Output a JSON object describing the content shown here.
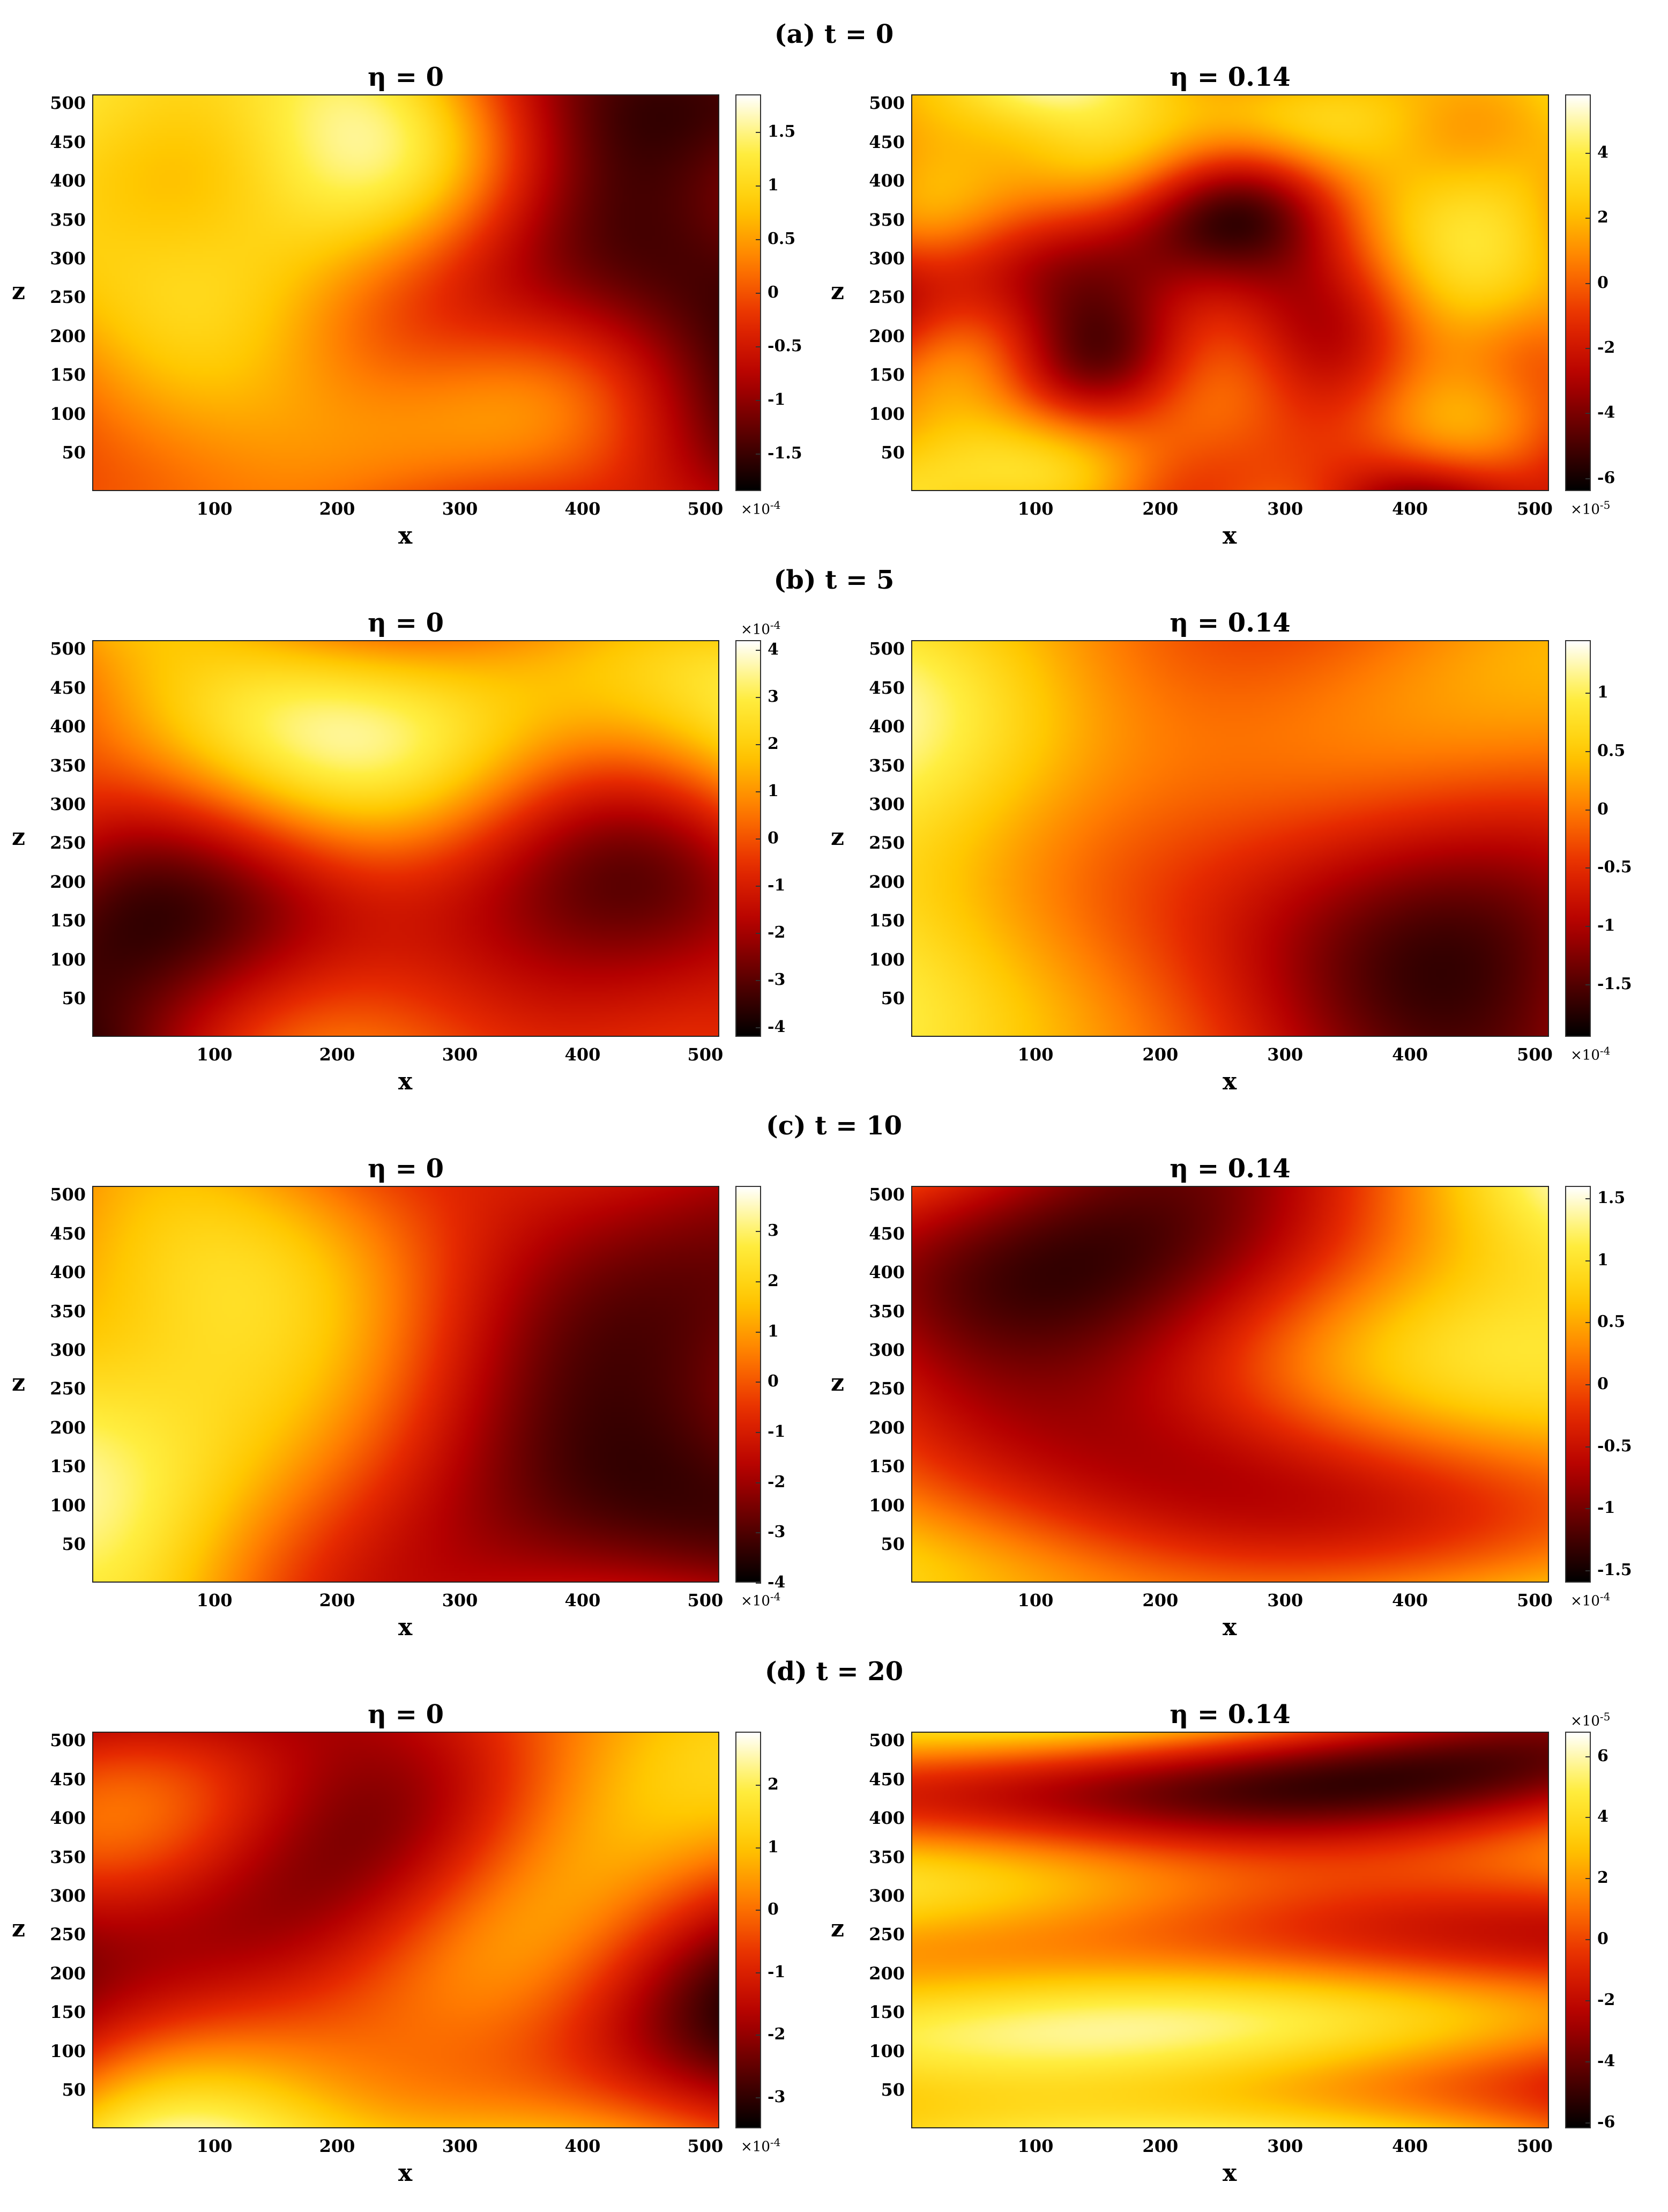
{
  "colormap": [
    "#000000",
    "#5a0000",
    "#b40000",
    "#e62a00",
    "#ff7a00",
    "#ffc800",
    "#ffee40",
    "#ffffff"
  ],
  "chart_data": [
    {
      "type": "heatmap",
      "row_title": "(a) t = 0",
      "title": "η = 0",
      "xlabel": "x",
      "ylabel": "z",
      "xlim": [
        1,
        512
      ],
      "ylim": [
        1,
        512
      ],
      "xticks": [
        100,
        200,
        300,
        400,
        500
      ],
      "yticks": [
        50,
        100,
        150,
        200,
        250,
        300,
        350,
        400,
        450,
        500
      ],
      "colorbar": {
        "min": -1.85,
        "max": 1.85,
        "ticks": [
          "1.5",
          "1",
          "0.5",
          "0",
          "-0.5",
          "-1",
          "-1.5"
        ],
        "tick_values": [
          1.5,
          1,
          0.5,
          0,
          -0.5,
          -1,
          -1.5
        ],
        "multiplier": "×10",
        "exponent": "-4",
        "multiplier_position": "bottom"
      },
      "seed": 11,
      "anisotropy": 1.0,
      "scale": 1.0
    },
    {
      "type": "heatmap",
      "row_title": "",
      "title": "η = 0.14",
      "xlabel": "x",
      "ylabel": "z",
      "xlim": [
        1,
        512
      ],
      "ylim": [
        1,
        512
      ],
      "xticks": [
        100,
        200,
        300,
        400,
        500
      ],
      "yticks": [
        50,
        100,
        150,
        200,
        250,
        300,
        350,
        400,
        450,
        500
      ],
      "colorbar": {
        "min": -6.4,
        "max": 5.8,
        "ticks": [
          "4",
          "2",
          "0",
          "-2",
          "-4",
          "-6"
        ],
        "tick_values": [
          4,
          2,
          0,
          -2,
          -4,
          -6
        ],
        "multiplier": "×10",
        "exponent": "-5",
        "multiplier_position": "bottom"
      },
      "seed": 23,
      "anisotropy": 1.0,
      "scale": 1.6
    },
    {
      "type": "heatmap",
      "row_title": "(b) t = 5",
      "title": "η = 0",
      "xlabel": "x",
      "ylabel": "z",
      "xlim": [
        1,
        512
      ],
      "ylim": [
        1,
        512
      ],
      "xticks": [
        100,
        200,
        300,
        400,
        500
      ],
      "yticks": [
        50,
        100,
        150,
        200,
        250,
        300,
        350,
        400,
        450,
        500
      ],
      "colorbar": {
        "min": -4.2,
        "max": 4.2,
        "ticks": [
          "4",
          "3",
          "2",
          "1",
          "0",
          "-1",
          "-2",
          "-3",
          "-4"
        ],
        "tick_values": [
          4,
          3,
          2,
          1,
          0,
          -1,
          -2,
          -3,
          -4
        ],
        "multiplier": "×10",
        "exponent": "-4",
        "multiplier_position": "top"
      },
      "seed": 37,
      "anisotropy": 1.0,
      "scale": 0.7
    },
    {
      "type": "heatmap",
      "row_title": "",
      "title": "η = 0.14",
      "xlabel": "x",
      "ylabel": "z",
      "xlim": [
        1,
        512
      ],
      "ylim": [
        1,
        512
      ],
      "xticks": [
        100,
        200,
        300,
        400,
        500
      ],
      "yticks": [
        50,
        100,
        150,
        200,
        250,
        300,
        350,
        400,
        450,
        500
      ],
      "colorbar": {
        "min": -1.95,
        "max": 1.45,
        "ticks": [
          "1",
          "0.5",
          "0",
          "-0.5",
          "-1",
          "-1.5"
        ],
        "tick_values": [
          1,
          0.5,
          0,
          -0.5,
          -1,
          -1.5
        ],
        "multiplier": "×10",
        "exponent": "-4",
        "multiplier_position": "bottom"
      },
      "seed": 41,
      "anisotropy": 1.0,
      "scale": 0.7
    },
    {
      "type": "heatmap",
      "row_title": "(c) t = 10",
      "title": "η = 0",
      "xlabel": "x",
      "ylabel": "z",
      "xlim": [
        1,
        512
      ],
      "ylim": [
        1,
        512
      ],
      "xticks": [
        100,
        200,
        300,
        400,
        500
      ],
      "yticks": [
        50,
        100,
        150,
        200,
        250,
        300,
        350,
        400,
        450,
        500
      ],
      "colorbar": {
        "min": -4.0,
        "max": 3.9,
        "ticks": [
          "3",
          "2",
          "1",
          "0",
          "-1",
          "-2",
          "-3",
          "-4"
        ],
        "tick_values": [
          3,
          2,
          1,
          0,
          -1,
          -2,
          -3,
          -4
        ],
        "multiplier": "×10",
        "exponent": "-4",
        "multiplier_position": "bottom"
      },
      "seed": 53,
      "anisotropy": 1.0,
      "scale": 0.7
    },
    {
      "type": "heatmap",
      "row_title": "",
      "title": "η = 0.14",
      "xlabel": "x",
      "ylabel": "z",
      "xlim": [
        1,
        512
      ],
      "ylim": [
        1,
        512
      ],
      "xticks": [
        100,
        200,
        300,
        400,
        500
      ],
      "yticks": [
        50,
        100,
        150,
        200,
        250,
        300,
        350,
        400,
        450,
        500
      ],
      "colorbar": {
        "min": -1.6,
        "max": 1.6,
        "ticks": [
          "1.5",
          "1",
          "0.5",
          "0",
          "-0.5",
          "-1",
          "-1.5"
        ],
        "tick_values": [
          1.5,
          1,
          0.5,
          0,
          -0.5,
          -1,
          -1.5
        ],
        "multiplier": "×10",
        "exponent": "-4",
        "multiplier_position": "bottom"
      },
      "seed": 67,
      "anisotropy": 1.6,
      "scale": 0.75
    },
    {
      "type": "heatmap",
      "row_title": "(d) t = 20",
      "title": "η = 0",
      "xlabel": "x",
      "ylabel": "z",
      "xlim": [
        1,
        512
      ],
      "ylim": [
        1,
        512
      ],
      "xticks": [
        100,
        200,
        300,
        400,
        500
      ],
      "yticks": [
        50,
        100,
        150,
        200,
        250,
        300,
        350,
        400,
        450,
        500
      ],
      "colorbar": {
        "min": -3.5,
        "max": 2.85,
        "ticks": [
          "2",
          "1",
          "0",
          "-1",
          "-2",
          "-3"
        ],
        "tick_values": [
          2,
          1,
          0,
          -1,
          -2,
          -3
        ],
        "multiplier": "×10",
        "exponent": "-4",
        "multiplier_position": "bottom"
      },
      "seed": 79,
      "anisotropy": 1.0,
      "scale": 0.8
    },
    {
      "type": "heatmap",
      "row_title": "",
      "title": "η = 0.14",
      "xlabel": "x",
      "ylabel": "z",
      "xlim": [
        1,
        512
      ],
      "ylim": [
        1,
        512
      ],
      "xticks": [
        100,
        200,
        300,
        400,
        500
      ],
      "yticks": [
        50,
        100,
        150,
        200,
        250,
        300,
        350,
        400,
        450,
        500
      ],
      "colorbar": {
        "min": -6.2,
        "max": 6.8,
        "ticks": [
          "6",
          "4",
          "2",
          "0",
          "-2",
          "-4",
          "-6"
        ],
        "tick_values": [
          6,
          4,
          2,
          0,
          -2,
          -4,
          -6
        ],
        "multiplier": "×10",
        "exponent": "-5",
        "multiplier_position": "top"
      },
      "seed": 97,
      "anisotropy": 3.0,
      "scale": 1.3
    }
  ]
}
